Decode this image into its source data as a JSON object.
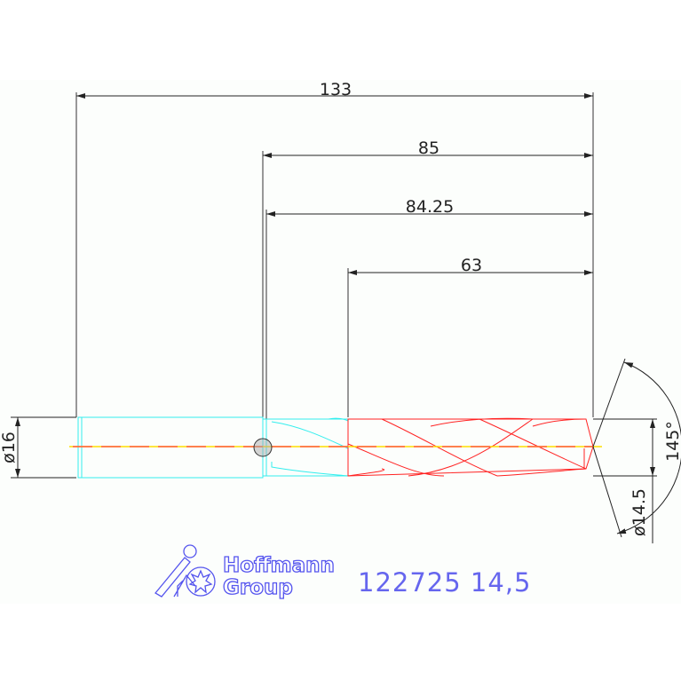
{
  "dimensions": {
    "overall_length": "133",
    "length_85": "85",
    "length_84_25": "84.25",
    "flute_length": "63",
    "shank_diameter": "ø16",
    "drill_diameter": "ø14.5",
    "point_angle": "145°"
  },
  "logo": {
    "line1": "Hoffmann",
    "line2": "Group"
  },
  "part_code": "122725 14,5",
  "colors": {
    "shank": "#33eeee",
    "flute": "#ff2222",
    "centerline": "#ffdd00",
    "dimension": "#222222",
    "logo": "#5555ee"
  }
}
